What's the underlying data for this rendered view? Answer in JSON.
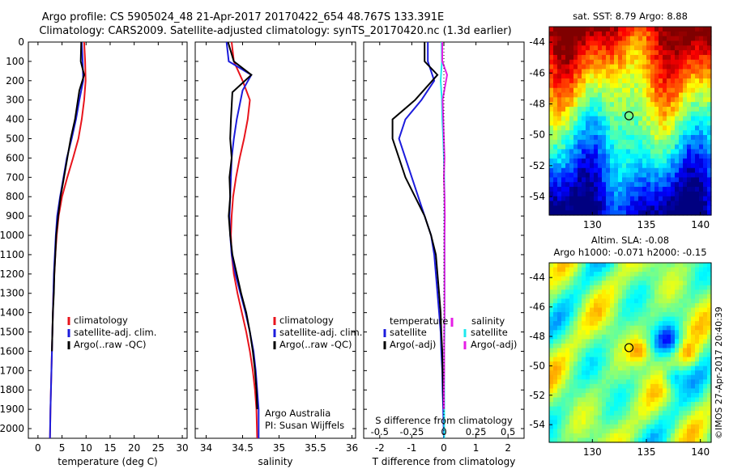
{
  "header": {
    "line1": "Argo profile: CS 5905024_48 21-Apr-2017 20170422_654 48.767S 133.391E",
    "line2": "Climatology: CARS2009. Satellite-adjusted climatology: synTS_20170420.nc (1.3d earlier)"
  },
  "colors": {
    "red": "#e8141c",
    "blue": "#1c1cdc",
    "black": "#000000",
    "cyan": "#1ee8ee",
    "magenta": "#e61ee6"
  },
  "depth_ticks": [
    0,
    100,
    200,
    300,
    400,
    500,
    600,
    700,
    800,
    900,
    1000,
    1100,
    1200,
    1300,
    1400,
    1500,
    1600,
    1700,
    1800,
    1900,
    2000
  ],
  "panels": {
    "temperature": {
      "xlabel": "temperature (deg C)",
      "xticks": [
        0,
        5,
        10,
        15,
        20,
        25,
        30
      ],
      "legend": [
        "climatology",
        "satellite-adj. clim.",
        "Argo(..raw -QC)"
      ]
    },
    "salinity": {
      "xlabel": "salinity",
      "xticks": [
        "34",
        "34.5",
        "35",
        "35.5",
        "36"
      ],
      "legend": [
        "climatology",
        "satellite-adj. clim.",
        "Argo(..raw -QC)"
      ],
      "credit1": "Argo Australia",
      "credit2": "PI: Susan Wijffels"
    },
    "difference": {
      "xlabel": "T difference from climatology",
      "xticks": [
        "-2",
        "-1",
        "0",
        "1",
        "2"
      ],
      "s_title": "S difference from climatology",
      "s_ticks": [
        "-0.5",
        "-0.25",
        "0",
        "0.25",
        "0.5"
      ],
      "legend_t_title": "temperature",
      "legend_t": [
        "satellite",
        "Argo(-adj)"
      ],
      "legend_s_title": "salinity",
      "legend_s": [
        "satellite",
        "Argo(-adj)"
      ]
    }
  },
  "maps": {
    "sst": {
      "title": "sat. SST: 8.79 Argo: 8.88",
      "yticks": [
        "-44",
        "-46",
        "-48",
        "-50",
        "-52",
        "-54"
      ],
      "xticks": [
        "130",
        "135",
        "140"
      ]
    },
    "sla": {
      "title1": "Altim. SLA: -0.08",
      "title2": "Argo h1000: -0.071 h2000: -0.15",
      "yticks": [
        "-44",
        "-46",
        "-48",
        "-50",
        "-52",
        "-54"
      ],
      "xticks": [
        "130",
        "135",
        "140"
      ],
      "stamp": "©IMOS 27-Apr-2017 20:40:39"
    }
  },
  "chart_data": [
    {
      "type": "line",
      "title": "",
      "xlabel": "temperature (deg C)",
      "ylabel": "",
      "xlim": [
        -2,
        31
      ],
      "ylim": [
        2050,
        0
      ],
      "series": [
        {
          "name": "climatology",
          "color": "red",
          "x": [
            9.6,
            9.8,
            9.9,
            9.6,
            9.1,
            8.4,
            7.3,
            6.1,
            5.0,
            4.3,
            3.9,
            3.6,
            3.4,
            3.2,
            3.1,
            3.0,
            2.9,
            2.8,
            2.7,
            2.6,
            2.5
          ],
          "y": [
            0,
            100,
            200,
            300,
            400,
            500,
            600,
            700,
            800,
            900,
            1000,
            1100,
            1200,
            1300,
            1400,
            1500,
            1600,
            1700,
            1800,
            1900,
            2050
          ]
        },
        {
          "name": "satellite-adj. clim.",
          "color": "blue",
          "x": [
            9.1,
            9.3,
            9.4,
            8.6,
            7.9,
            7.0,
            6.0,
            5.3,
            4.6,
            4.0,
            3.7,
            3.5,
            3.3,
            3.2,
            3.1,
            3.0,
            2.9,
            2.8,
            2.7,
            2.6,
            2.5
          ],
          "y": [
            0,
            100,
            200,
            300,
            400,
            500,
            600,
            700,
            800,
            900,
            1000,
            1100,
            1200,
            1300,
            1400,
            1500,
            1600,
            1700,
            1800,
            1900,
            2050
          ]
        },
        {
          "name": "Argo(..raw -QC)",
          "color": "black",
          "x": [
            9.0,
            8.9,
            9.6,
            8.6,
            7.7,
            6.8,
            6.1,
            5.4,
            4.7,
            4.2,
            3.8,
            3.6,
            3.4,
            3.3,
            3.1,
            3.0,
            2.9
          ],
          "y": [
            0,
            100,
            170,
            250,
            400,
            500,
            600,
            700,
            800,
            900,
            1000,
            1100,
            1200,
            1300,
            1400,
            1500,
            1600
          ]
        }
      ]
    },
    {
      "type": "line",
      "title": "",
      "xlabel": "salinity",
      "ylabel": "",
      "xlim": [
        33.85,
        36.05
      ],
      "ylim": [
        2050,
        0
      ],
      "series": [
        {
          "name": "climatology",
          "color": "red",
          "x": [
            34.35,
            34.38,
            34.5,
            34.6,
            34.57,
            34.52,
            34.46,
            34.41,
            34.37,
            34.35,
            34.34,
            34.35,
            34.38,
            34.43,
            34.49,
            34.55,
            34.6,
            34.64,
            34.67,
            34.69,
            34.7
          ],
          "y": [
            0,
            100,
            200,
            300,
            400,
            500,
            600,
            700,
            800,
            900,
            1000,
            1100,
            1200,
            1300,
            1400,
            1500,
            1600,
            1700,
            1800,
            1900,
            2050
          ]
        },
        {
          "name": "satellite-adj. clim.",
          "color": "blue",
          "x": [
            34.28,
            34.31,
            34.62,
            34.5,
            34.42,
            34.38,
            34.35,
            34.34,
            34.33,
            34.32,
            34.33,
            34.35,
            34.4,
            34.47,
            34.54,
            34.6,
            34.65,
            34.68,
            34.7,
            34.72,
            34.72
          ],
          "y": [
            0,
            100,
            170,
            250,
            400,
            500,
            600,
            700,
            800,
            900,
            1000,
            1100,
            1200,
            1300,
            1400,
            1500,
            1600,
            1700,
            1800,
            1900,
            2050
          ]
        },
        {
          "name": "Argo(..raw -QC)",
          "color": "black",
          "x": [
            34.3,
            34.38,
            34.62,
            34.36,
            34.34,
            34.33,
            34.35,
            34.32,
            34.33,
            34.31,
            34.33,
            34.36,
            34.42,
            34.48,
            34.55,
            34.6,
            34.64,
            34.67,
            34.69,
            34.7
          ],
          "y": [
            0,
            100,
            170,
            260,
            400,
            500,
            600,
            700,
            800,
            900,
            1000,
            1100,
            1200,
            1300,
            1400,
            1500,
            1600,
            1700,
            1800,
            1900
          ]
        }
      ]
    },
    {
      "type": "line",
      "title": "",
      "xlabel": "T difference from climatology",
      "ylabel": "",
      "xlim": [
        -2.5,
        2.5
      ],
      "ylim": [
        2050,
        0
      ],
      "series": [
        {
          "name": "temperature satellite",
          "color": "blue",
          "x": [
            -0.5,
            -0.5,
            -0.3,
            -0.7,
            -1.2,
            -1.4,
            -1.2,
            -1.0,
            -0.8,
            -0.6,
            -0.4,
            -0.3,
            -0.25,
            -0.2,
            -0.15,
            -0.1,
            -0.08,
            -0.05,
            -0.04,
            -0.02,
            0.0
          ],
          "y": [
            0,
            100,
            200,
            300,
            400,
            500,
            600,
            700,
            800,
            900,
            1000,
            1100,
            1200,
            1300,
            1400,
            1500,
            1600,
            1700,
            1800,
            1900,
            2050
          ]
        },
        {
          "name": "temperature Argo(-adj)",
          "color": "black",
          "x": [
            -0.6,
            -0.6,
            -0.2,
            -0.9,
            -1.6,
            -1.6,
            -1.4,
            -1.2,
            -0.9,
            -0.6,
            -0.4,
            -0.25,
            -0.2,
            -0.15,
            -0.1,
            -0.08,
            -0.05,
            -0.04,
            -0.02,
            0.0
          ],
          "y": [
            0,
            100,
            170,
            300,
            400,
            500,
            600,
            700,
            800,
            900,
            1000,
            1100,
            1200,
            1300,
            1400,
            1500,
            1600,
            1700,
            1800,
            1900
          ]
        },
        {
          "name": "salinity satellite",
          "color": "cyan",
          "x": [
            -0.07,
            -0.06,
            -0.1,
            -0.06,
            -0.05,
            -0.02,
            0.0,
            0.01,
            0.02,
            0.02,
            0.02,
            0.02,
            0.02,
            0.02,
            0.02,
            0.02,
            0.01,
            0.01,
            0.01,
            0.01,
            0.01
          ],
          "y": [
            0,
            100,
            200,
            300,
            400,
            500,
            600,
            700,
            800,
            900,
            1000,
            1100,
            1200,
            1300,
            1400,
            1500,
            1600,
            1700,
            1800,
            1900,
            2050
          ]
        },
        {
          "name": "salinity Argo(-adj)",
          "color": "magenta",
          "x": [
            -0.05,
            -0.05,
            0.1,
            -0.04,
            -0.02,
            0.0,
            0.02,
            0.0,
            0.02,
            0.03,
            0.02,
            0.02,
            0.02,
            0.02,
            0.02,
            0.01,
            0.01,
            0.01,
            0.0,
            0.0
          ],
          "y": [
            0,
            100,
            170,
            300,
            400,
            500,
            600,
            700,
            800,
            900,
            1000,
            1100,
            1200,
            1300,
            1400,
            1500,
            1600,
            1700,
            1800,
            1900
          ]
        }
      ]
    }
  ]
}
